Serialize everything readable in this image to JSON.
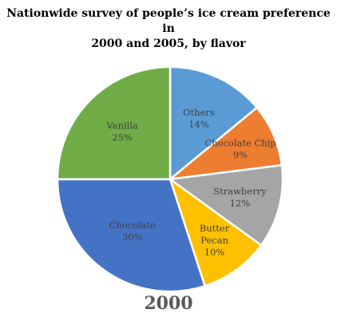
{
  "chart_data": {
    "type": "pie",
    "title_line1": "Nationwide survey of people’s ice cream preference in",
    "title_line2": "2000 and 2005, by flavor",
    "caption": "2000",
    "slices": [
      {
        "name": "Others",
        "value": 14,
        "label": "14%",
        "color": "#5b9bd5"
      },
      {
        "name": "Chocolate Chip",
        "value": 9,
        "label": "9%",
        "color": "#ed7d31"
      },
      {
        "name": "Strawberry",
        "value": 12,
        "label": "12%",
        "color": "#a5a5a5"
      },
      {
        "name": "Butter Pecan",
        "value": 10,
        "label": "10%",
        "color": "#ffc000"
      },
      {
        "name": "Chocolate",
        "value": 30,
        "label": "30%",
        "color": "#4472c4"
      },
      {
        "name": "Vanilla",
        "value": 25,
        "label": "25%",
        "color": "#70ad47"
      }
    ]
  }
}
